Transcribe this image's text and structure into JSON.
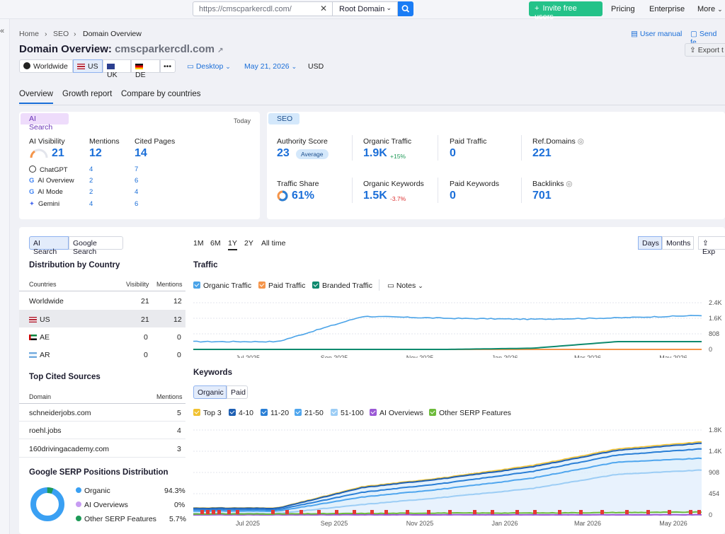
{
  "topbar": {
    "url_value": "https://cmscparkercdl.com/",
    "root_domain": "Root Domain",
    "invite_label": "Invite free users",
    "pricing": "Pricing",
    "enterprise": "Enterprise",
    "more": "More"
  },
  "breadcrumb": [
    "Home",
    "SEO",
    "Domain Overview"
  ],
  "header": {
    "title_prefix": "Domain Overview:",
    "domain": "cmscparkercdl.com",
    "user_manual": "User manual",
    "send_feedback": "Send fe",
    "export": "Export t"
  },
  "databases": {
    "worldwide": "Worldwide",
    "us": "US",
    "uk": "UK",
    "de": "DE",
    "more": "•••"
  },
  "filters": {
    "device": "Desktop",
    "date": "May 21, 2026",
    "currency": "USD"
  },
  "tabs": [
    "Overview",
    "Growth report",
    "Compare by countries"
  ],
  "ai_card": {
    "pill": "AI Search",
    "today": "Today",
    "visibility_label": "AI Visibility",
    "visibility_value": "21",
    "mentions_label": "Mentions",
    "mentions_value": "12",
    "cited_label": "Cited Pages",
    "cited_value": "14",
    "sources": [
      {
        "name": "ChatGPT",
        "mentions": "4",
        "cited": "7"
      },
      {
        "name": "AI Overview",
        "mentions": "2",
        "cited": "6"
      },
      {
        "name": "AI Mode",
        "mentions": "2",
        "cited": "4"
      },
      {
        "name": "Gemini",
        "mentions": "4",
        "cited": "6"
      }
    ]
  },
  "seo_card": {
    "pill": "SEO",
    "authority_label": "Authority Score",
    "authority_value": "23",
    "authority_badge": "Average",
    "organic_traffic_label": "Organic Traffic",
    "organic_traffic_value": "1.9K",
    "organic_traffic_change": "+15%",
    "paid_traffic_label": "Paid Traffic",
    "paid_traffic_value": "0",
    "ref_domains_label": "Ref.Domains",
    "ref_domains_value": "221",
    "traffic_share_label": "Traffic Share",
    "traffic_share_value": "61%",
    "organic_keywords_label": "Organic Keywords",
    "organic_keywords_value": "1.5K",
    "organic_keywords_change": "-3.7%",
    "paid_keywords_label": "Paid Keywords",
    "paid_keywords_value": "0",
    "backlinks_label": "Backlinks",
    "backlinks_value": "701"
  },
  "left_panel": {
    "seg_ai": "AI Search",
    "seg_google": "Google Search",
    "dist_title": "Distribution by Country",
    "dist_headers": [
      "Countries",
      "Visibility",
      "Mentions"
    ],
    "dist_rows": [
      {
        "country": "Worldwide",
        "visibility": "21",
        "mentions": "12"
      },
      {
        "country": "US",
        "visibility": "21",
        "mentions": "12"
      },
      {
        "country": "AE",
        "visibility": "0",
        "mentions": "0"
      },
      {
        "country": "AR",
        "visibility": "0",
        "mentions": "0"
      }
    ],
    "sources_title": "Top Cited Sources",
    "sources_headers": [
      "Domain",
      "Mentions"
    ],
    "sources_rows": [
      {
        "domain": "schneiderjobs.com",
        "mentions": "5"
      },
      {
        "domain": "roehl.jobs",
        "mentions": "4"
      },
      {
        "domain": "160drivingacademy.com",
        "mentions": "3"
      }
    ],
    "serp_title": "Google SERP Positions Distribution",
    "serp_rows": [
      {
        "label": "Organic",
        "value": "94.3%",
        "color": "#3aa0f3"
      },
      {
        "label": "AI Overviews",
        "value": "0%",
        "color": "#c79cf2"
      },
      {
        "label": "Other SERP Features",
        "value": "5.7%",
        "color": "#1e9a57"
      }
    ]
  },
  "charts_panel": {
    "periods": [
      "1M",
      "6M",
      "1Y",
      "2Y",
      "All time"
    ],
    "active_period": "1Y",
    "days": "Days",
    "months": "Months",
    "export": "Exp",
    "traffic_title": "Traffic",
    "traffic_legend": [
      {
        "label": "Organic Traffic",
        "color": "#4aa3e8"
      },
      {
        "label": "Paid Traffic",
        "color": "#f5954a"
      },
      {
        "label": "Branded Traffic",
        "color": "#0e8a6e"
      }
    ],
    "notes": "Notes",
    "keywords_title": "Keywords",
    "kw_seg_organic": "Organic",
    "kw_seg_paid": "Paid",
    "keywords_legend": [
      {
        "label": "Top 3",
        "color": "#f1c232"
      },
      {
        "label": "4-10",
        "color": "#1d5fb3"
      },
      {
        "label": "11-20",
        "color": "#2a7fd6"
      },
      {
        "label": "21-50",
        "color": "#4fa6ee"
      },
      {
        "label": "51-100",
        "color": "#9ccdf5"
      },
      {
        "label": "AI Overviews",
        "color": "#9b59d6"
      },
      {
        "label": "Other SERP Features",
        "color": "#6dbb3b"
      }
    ]
  },
  "chart_data": [
    {
      "type": "line",
      "title": "Traffic",
      "x": [
        "Jul 2025",
        "Sep 2025",
        "Nov 2025",
        "Jan 2026",
        "Mar 2026",
        "May 2026"
      ],
      "y_ticks": [
        "2.4K",
        "1.6K",
        "808",
        "0"
      ],
      "ylim": [
        0,
        2400
      ],
      "series": [
        {
          "name": "Organic Traffic",
          "values": [
            400,
            1700,
            1600,
            1550,
            1620,
            1750
          ]
        },
        {
          "name": "Paid Traffic",
          "values": [
            0,
            0,
            0,
            0,
            0,
            0
          ]
        },
        {
          "name": "Branded Traffic",
          "values": [
            0,
            0,
            0,
            60,
            400,
            400
          ]
        }
      ]
    },
    {
      "type": "area",
      "title": "Keywords",
      "x": [
        "Jul 2025",
        "Sep 2025",
        "Nov 2025",
        "Jan 2026",
        "Mar 2026",
        "May 2026"
      ],
      "y_ticks": [
        "1.8K",
        "1.4K",
        "908",
        "454",
        "0"
      ],
      "ylim": [
        0,
        1800
      ],
      "series": [
        {
          "name": "Top 3",
          "values": [
            150,
            600,
            800,
            1050,
            1400,
            1550
          ]
        },
        {
          "name": "4-10",
          "values": [
            140,
            580,
            780,
            1020,
            1370,
            1520
          ]
        },
        {
          "name": "11-20",
          "values": [
            110,
            480,
            680,
            920,
            1270,
            1400
          ]
        },
        {
          "name": "21-50",
          "values": [
            80,
            380,
            560,
            780,
            1120,
            1200
          ]
        },
        {
          "name": "51-100",
          "values": [
            30,
            220,
            380,
            560,
            860,
            950
          ]
        },
        {
          "name": "AI Overviews",
          "values": [
            0,
            0,
            0,
            0,
            0,
            0
          ]
        },
        {
          "name": "Other SERP Features",
          "values": [
            20,
            30,
            40,
            40,
            50,
            60
          ]
        }
      ]
    }
  ]
}
